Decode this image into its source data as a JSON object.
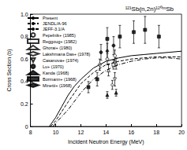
{
  "chart_data": {
    "type": "line",
    "title": "¹²¹Sb(n,2n)¹²⁰ᵐSb",
    "x_label": "Incident Neutron Energy (MeV)",
    "y_label": "Cross Section (b)",
    "xlim": [
      8,
      20
    ],
    "xticks": [
      8,
      10,
      12,
      14,
      16,
      18,
      20
    ],
    "ylim": [
      0,
      1
    ],
    "yticks": [
      0,
      0.2,
      0.4,
      0.6,
      0.8,
      {
        "value": 1,
        "label": "1.0"
      }
    ],
    "grid": false,
    "legend": "upper left",
    "series": [
      {
        "name": "Present",
        "type": "line",
        "line_style": "solid",
        "color": "#000000",
        "x": [
          9.5,
          10,
          10.5,
          11,
          11.5,
          12,
          13,
          14,
          15,
          16,
          17,
          18,
          19,
          20
        ],
        "values": [
          0,
          0.08,
          0.18,
          0.28,
          0.36,
          0.42,
          0.52,
          0.58,
          0.61,
          0.63,
          0.64,
          0.65,
          0.66,
          0.67
        ]
      },
      {
        "name": "JENDL/A-96",
        "type": "line",
        "line_style": "dashed",
        "color": "#000000",
        "x": [
          9.6,
          10,
          11,
          12,
          13,
          14,
          15,
          16,
          17,
          18,
          19,
          20
        ],
        "values": [
          0,
          0.05,
          0.22,
          0.38,
          0.48,
          0.55,
          0.58,
          0.6,
          0.61,
          0.62,
          0.62,
          0.62
        ]
      },
      {
        "name": "JEFF-3.1/A",
        "type": "line",
        "line_style": "dashdot",
        "color": "#000000",
        "x": [
          9.8,
          10,
          11,
          12,
          13,
          14,
          15,
          16,
          17,
          18,
          19,
          20
        ],
        "values": [
          0,
          0.03,
          0.15,
          0.3,
          0.42,
          0.5,
          0.55,
          0.58,
          0.6,
          0.61,
          0.61,
          0.6
        ]
      },
      {
        "name": "Pepelnik+ (1985)",
        "type": "scatter",
        "marker": "circle-open",
        "color": "#000000",
        "x": [
          13.5,
          14.1,
          14.7
        ],
        "values": [
          0.55,
          0.6,
          0.63
        ],
        "errors": [
          0.05,
          0.05,
          0.05
        ]
      },
      {
        "name": "Reggoug+ (1982)",
        "type": "scatter",
        "marker": "square-open",
        "color": "#000000",
        "x": [
          14.6
        ],
        "values": [
          0.55
        ],
        "errors": [
          0.04
        ]
      },
      {
        "name": "Ghorai+ (1980)",
        "type": "scatter",
        "marker": "triangle-open",
        "color": "#000000",
        "x": [
          14.2,
          14.8
        ],
        "values": [
          0.5,
          0.56
        ],
        "errors": [
          0.05,
          0.05
        ]
      },
      {
        "name": "Lakshmana Das+ (1978)",
        "type": "scatter",
        "marker": "diamond-open",
        "color": "#000000",
        "x": [
          14.5
        ],
        "values": [
          0.37
        ],
        "errors": [
          0.04
        ]
      },
      {
        "name": "Casanova+ (1974)",
        "type": "scatter",
        "marker": "invtriangle-open",
        "color": "#000000",
        "x": [
          14.7
        ],
        "values": [
          0.42
        ],
        "errors": [
          0.06
        ]
      },
      {
        "name": "Lu+ (1970)",
        "type": "scatter",
        "marker": "circle-filled",
        "color": "#000000",
        "x": [
          13.6,
          14.6
        ],
        "values": [
          0.66,
          0.72
        ],
        "errors": [
          0.07,
          0.08
        ]
      },
      {
        "name": "Kanda (1968)",
        "type": "scatter",
        "marker": "triangle-filled",
        "color": "#000000",
        "x": [
          14.1,
          14.8
        ],
        "values": [
          0.28,
          0.3
        ],
        "errors": [
          0.03,
          0.03
        ]
      },
      {
        "name": "Bormann+ (1968)",
        "type": "scatter",
        "marker": "square-filled",
        "color": "#000000",
        "x": [
          12.6,
          13.3,
          14.1,
          15.1,
          16.2,
          17.1,
          18.2
        ],
        "values": [
          0.35,
          0.42,
          0.78,
          0.8,
          0.84,
          0.86,
          0.8
        ],
        "errors": [
          0.05,
          0.06,
          0.1,
          0.1,
          0.1,
          0.12,
          0.1
        ]
      },
      {
        "name": "Minetti+ (1968)",
        "type": "scatter",
        "marker": "diamond-filled",
        "color": "#000000",
        "x": [
          14.1
        ],
        "values": [
          0.67
        ],
        "errors": [
          0.07
        ]
      }
    ]
  }
}
